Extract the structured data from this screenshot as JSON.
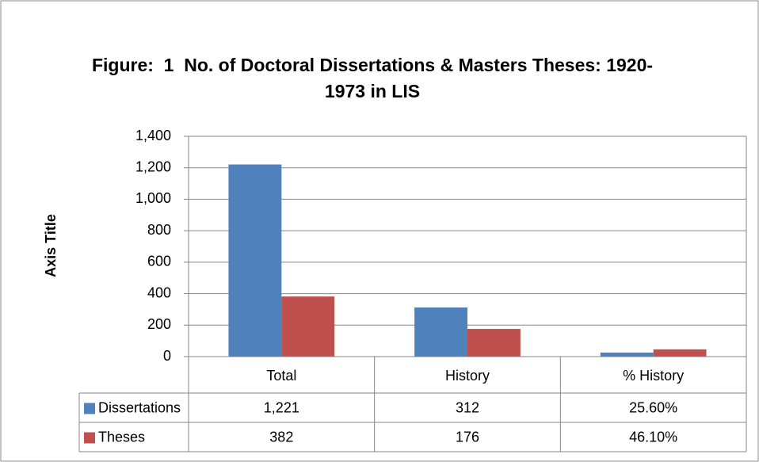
{
  "chart_data": {
    "type": "bar",
    "title": "Figure:  1  No. of Doctoral Dissertations & Masters Theses: 1920-1973 in LIS",
    "y_axis_label": "Axis Title",
    "categories": [
      "Total",
      "History",
      "% History"
    ],
    "series": [
      {
        "name": "Dissertations",
        "color": "#4f81bd",
        "values": [
          1221,
          312,
          25.6
        ],
        "value_labels": [
          "1,221",
          "312",
          "25.60%"
        ]
      },
      {
        "name": "Theses",
        "color": "#c0504d",
        "values": [
          382,
          176,
          46.1
        ],
        "value_labels": [
          "382",
          "176",
          "46.10%"
        ]
      }
    ],
    "ylim": [
      0,
      1400
    ],
    "yticks": [
      0,
      200,
      400,
      600,
      800,
      {
        "value": 1000,
        "label": "1,000"
      },
      {
        "value": 1200,
        "label": "1,200"
      },
      {
        "value": 1400,
        "label": "1,400"
      }
    ],
    "grid": true,
    "data_table": true
  }
}
